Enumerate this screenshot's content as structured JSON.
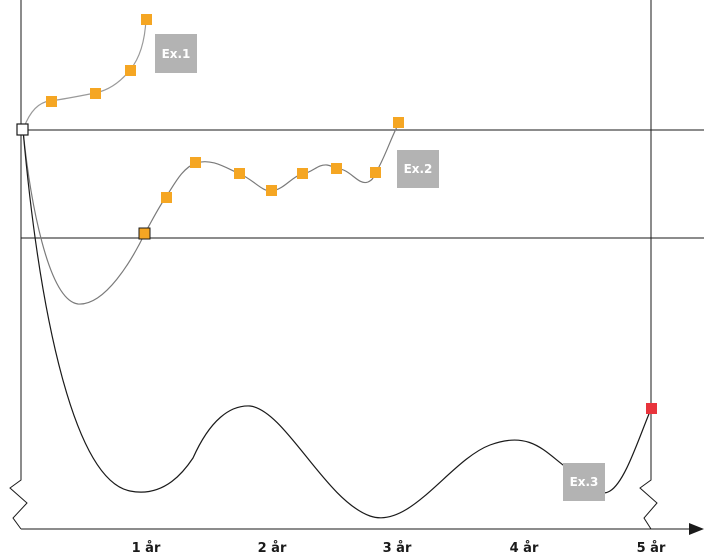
{
  "chart_data": {
    "type": "line",
    "title": "",
    "xlabel": "",
    "ylabel": "",
    "x_ticks": [
      "1 år",
      "2 år",
      "3 år",
      "4 år",
      "5 år"
    ],
    "colors": {
      "axis": "#1a1a1a",
      "ex1_line": "#9a9a9a",
      "ex2_line": "#7a7a7a",
      "ex3_line": "#1a1a1a",
      "marker": "#f5a623",
      "marker_end": "#e8343c",
      "start_marker": "#ffffff",
      "label_bg": "#b3b3b3"
    },
    "series": [
      {
        "name": "Ex.1",
        "x_years": [
          0,
          0.23,
          0.6,
          0.88,
          1.0
        ]
      },
      {
        "name": "Ex.2",
        "x_years": [
          1.0,
          1.15,
          1.4,
          1.75,
          2.0,
          2.3,
          2.55,
          2.85,
          3.0
        ]
      },
      {
        "name": "Ex.3",
        "x_years": [
          5.0
        ]
      }
    ]
  }
}
